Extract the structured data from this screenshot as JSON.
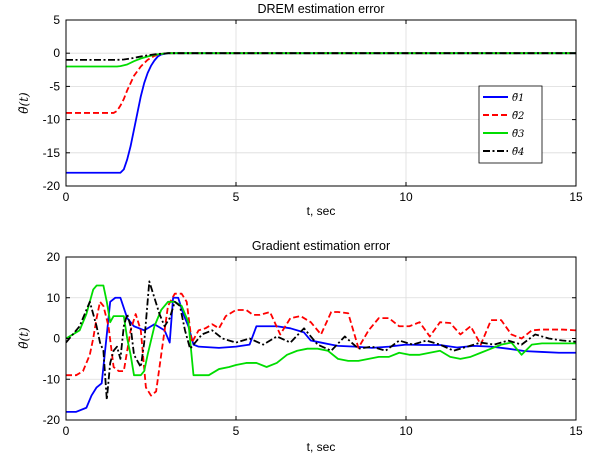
{
  "chart_data": [
    {
      "type": "line",
      "title": "DREM estimation error",
      "xlabel": "t, sec",
      "ylabel": "θ̃(t)",
      "xlim": [
        0,
        15
      ],
      "ylim": [
        -20,
        5
      ],
      "xticks": [
        0,
        5,
        10,
        15
      ],
      "yticks": [
        5,
        0,
        -5,
        -10,
        -15,
        -20
      ],
      "grid": true,
      "legend_position": "right-middle",
      "series": [
        {
          "name": "θ̃1",
          "color": "#0000ff",
          "style": "solid",
          "x": [
            0,
            1.0,
            1.6,
            1.7,
            1.8,
            1.9,
            2.0,
            2.1,
            2.2,
            2.3,
            2.4,
            2.5,
            2.6,
            2.7,
            2.8,
            3.0,
            3.5,
            15
          ],
          "y": [
            -18,
            -18,
            -18,
            -17.5,
            -16,
            -14,
            -11.5,
            -9,
            -6.5,
            -4.5,
            -3,
            -1.9,
            -1.1,
            -0.5,
            -0.2,
            0,
            0,
            0
          ]
        },
        {
          "name": "θ̃2",
          "color": "#ff0000",
          "style": "dashed",
          "x": [
            0,
            1.0,
            1.4,
            1.5,
            1.6,
            1.7,
            1.8,
            1.9,
            2.0,
            2.2,
            2.4,
            2.6,
            2.8,
            3.0,
            15
          ],
          "y": [
            -9,
            -9,
            -9,
            -8.7,
            -7.9,
            -6.9,
            -5.6,
            -4.5,
            -3.4,
            -2.0,
            -1.0,
            -0.4,
            -0.1,
            0,
            0
          ]
        },
        {
          "name": "θ̃3",
          "color": "#00dd00",
          "style": "solid",
          "x": [
            0,
            1.5,
            1.6,
            1.8,
            2.0,
            2.2,
            2.4,
            2.6,
            2.8,
            3.0,
            15
          ],
          "y": [
            -2,
            -2,
            -1.95,
            -1.7,
            -1.2,
            -0.8,
            -0.5,
            -0.25,
            -0.1,
            0,
            0
          ]
        },
        {
          "name": "θ̃4",
          "color": "#000000",
          "style": "dashdot",
          "x": [
            0,
            1.5,
            1.7,
            1.9,
            2.1,
            2.3,
            2.5,
            2.7,
            2.9,
            3.0,
            15
          ],
          "y": [
            -1,
            -1,
            -0.95,
            -0.8,
            -0.6,
            -0.4,
            -0.25,
            -0.12,
            -0.05,
            0,
            0
          ]
        }
      ]
    },
    {
      "type": "line",
      "title": "Gradient estimation error",
      "xlabel": "t, sec",
      "ylabel": "θ̃(t)",
      "xlim": [
        0,
        15
      ],
      "ylim": [
        -20,
        20
      ],
      "xticks": [
        0,
        5,
        10,
        15
      ],
      "yticks": [
        20,
        10,
        0,
        -10,
        -20
      ],
      "grid": true,
      "series": [
        {
          "name": "θ̃1",
          "color": "#0000ff",
          "style": "solid",
          "x": [
            0,
            0.3,
            0.6,
            0.75,
            0.9,
            1.05,
            1.15,
            1.3,
            1.45,
            1.6,
            1.8,
            2.0,
            2.3,
            2.6,
            2.9,
            3.05,
            3.15,
            3.3,
            3.45,
            3.6,
            3.75,
            3.9,
            4.5,
            5.0,
            5.4,
            5.6,
            6.2,
            6.6,
            7.0,
            7.2,
            7.5,
            7.8,
            8.0,
            8.5,
            9.0,
            9.5,
            10.0,
            10.5,
            11.0,
            11.5,
            12.0,
            12.5,
            13.0,
            13.5,
            14.0,
            14.5,
            15.0
          ],
          "y": [
            -18,
            -18,
            -17,
            -14,
            -12,
            -11,
            -3,
            9,
            10,
            10,
            5,
            3,
            2,
            3.5,
            2,
            -1,
            10,
            10,
            6,
            3,
            -1.5,
            -2,
            -2.3,
            -2,
            -1.5,
            3,
            3,
            2.5,
            1.5,
            -0.5,
            -1,
            -1.5,
            -1.8,
            -2.0,
            -2.3,
            -2.0,
            -1.5,
            -1.6,
            -1.6,
            -2.2,
            -1.8,
            -2.0,
            -2.5,
            -3.1,
            -3.3,
            -3.5,
            -3.5
          ]
        },
        {
          "name": "θ̃2",
          "color": "#ff0000",
          "style": "dashed",
          "x": [
            0,
            0.3,
            0.5,
            0.7,
            0.8,
            0.9,
            1.0,
            1.1,
            1.25,
            1.4,
            1.55,
            1.7,
            1.9,
            2.05,
            2.2,
            2.35,
            2.5,
            2.65,
            2.8,
            3.0,
            3.2,
            3.4,
            3.55,
            3.7,
            3.9,
            4.1,
            4.3,
            4.5,
            4.7,
            5.0,
            5.3,
            5.5,
            5.7,
            6.0,
            6.3,
            6.6,
            6.9,
            7.2,
            7.5,
            7.8,
            8.0,
            8.3,
            8.6,
            8.9,
            9.2,
            9.5,
            9.8,
            10.1,
            10.4,
            10.7,
            11.0,
            11.3,
            11.6,
            11.9,
            12.2,
            12.5,
            12.8,
            13.1,
            13.4,
            13.7,
            14.0,
            14.3,
            14.6,
            15.0
          ],
          "y": [
            -9,
            -9,
            -8,
            -4,
            0,
            5,
            9,
            8,
            3,
            -7,
            -8,
            -8,
            2,
            6,
            2,
            -12,
            -14,
            -13,
            -4,
            8,
            11,
            11,
            9,
            -1,
            2,
            2.5,
            3.5,
            2.5,
            5.5,
            7,
            7,
            5.8,
            5.8,
            6.5,
            1,
            5,
            5.5,
            4,
            1,
            6.5,
            6.5,
            6.2,
            -2.3,
            2,
            5,
            5,
            3,
            3,
            4,
            0.5,
            4,
            3.8,
            1,
            3,
            -1.5,
            4.5,
            4.5,
            1,
            0,
            2,
            2.2,
            2.2,
            2.2,
            2.0
          ]
        },
        {
          "name": "θ̃3",
          "color": "#00dd00",
          "style": "solid",
          "x": [
            0,
            0.2,
            0.4,
            0.6,
            0.7,
            0.8,
            0.9,
            1.0,
            1.1,
            1.2,
            1.3,
            1.4,
            1.55,
            1.7,
            1.8,
            1.9,
            2.0,
            2.1,
            2.2,
            2.3,
            2.4,
            2.6,
            2.8,
            3.0,
            3.2,
            3.4,
            3.6,
            3.75,
            3.9,
            4.2,
            4.5,
            4.8,
            5.0,
            5.3,
            5.6,
            5.9,
            6.2,
            6.5,
            6.8,
            7.1,
            7.4,
            7.7,
            8.0,
            8.3,
            8.6,
            8.9,
            9.2,
            9.5,
            9.8,
            10.1,
            10.4,
            10.7,
            11.0,
            11.3,
            11.6,
            11.9,
            12.2,
            12.5,
            12.8,
            13.1,
            13.4,
            13.7,
            14.0,
            14.5,
            15.0
          ],
          "y": [
            0,
            1,
            2,
            6,
            9,
            12,
            13,
            13,
            13,
            9,
            4,
            5.5,
            5.5,
            5.5,
            0,
            -4,
            -9,
            -9,
            -9,
            -8,
            -4,
            3,
            7,
            9,
            9,
            8,
            4,
            -9,
            -9,
            -9,
            -7.5,
            -7,
            -6.5,
            -6,
            -6,
            -7,
            -6,
            -4,
            -3,
            -2.5,
            -2.5,
            -3,
            -5,
            -5.5,
            -5.5,
            -5,
            -4.5,
            -4.5,
            -3.5,
            -4,
            -4,
            -3.5,
            -3,
            -4.5,
            -5,
            -4.5,
            -3.5,
            -2.5,
            -1.5,
            -1,
            -4,
            -1.5,
            -1.2,
            -1.2,
            -1.2
          ]
        },
        {
          "name": "θ̃4",
          "color": "#000000",
          "style": "dashdot",
          "x": [
            0,
            0.2,
            0.4,
            0.55,
            0.7,
            0.9,
            1.0,
            1.1,
            1.2,
            1.3,
            1.4,
            1.5,
            1.6,
            1.7,
            1.8,
            1.9,
            2.0,
            2.2,
            2.3,
            2.45,
            2.6,
            2.75,
            2.9,
            3.05,
            3.2,
            3.35,
            3.5,
            3.65,
            3.8,
            4.0,
            4.3,
            4.6,
            5.0,
            5.4,
            5.8,
            6.2,
            6.6,
            7.0,
            7.4,
            7.8,
            8.2,
            8.6,
            9.0,
            9.4,
            9.8,
            10.2,
            10.6,
            11.0,
            11.4,
            11.8,
            12.2,
            12.6,
            13.0,
            13.4,
            13.8,
            14.2,
            14.6,
            15.0
          ],
          "y": [
            -1,
            1,
            3,
            6,
            9,
            3,
            -1,
            -3,
            -15,
            -6,
            -3,
            -2,
            -5,
            3,
            6,
            3,
            -4,
            -7,
            -1,
            14,
            10,
            6,
            3,
            5,
            9,
            8,
            2,
            -2.5,
            -1,
            1,
            2,
            0,
            -1,
            0,
            -1.5,
            0.5,
            -1,
            2.5,
            -1.5,
            -3,
            0.5,
            -2.5,
            -2,
            -3,
            -0.5,
            -1.5,
            -0.5,
            -1.5,
            -3,
            -2,
            -1,
            -1.5,
            -0.5,
            -1.5,
            1,
            0,
            -0.5,
            -0.8
          ]
        }
      ]
    }
  ]
}
